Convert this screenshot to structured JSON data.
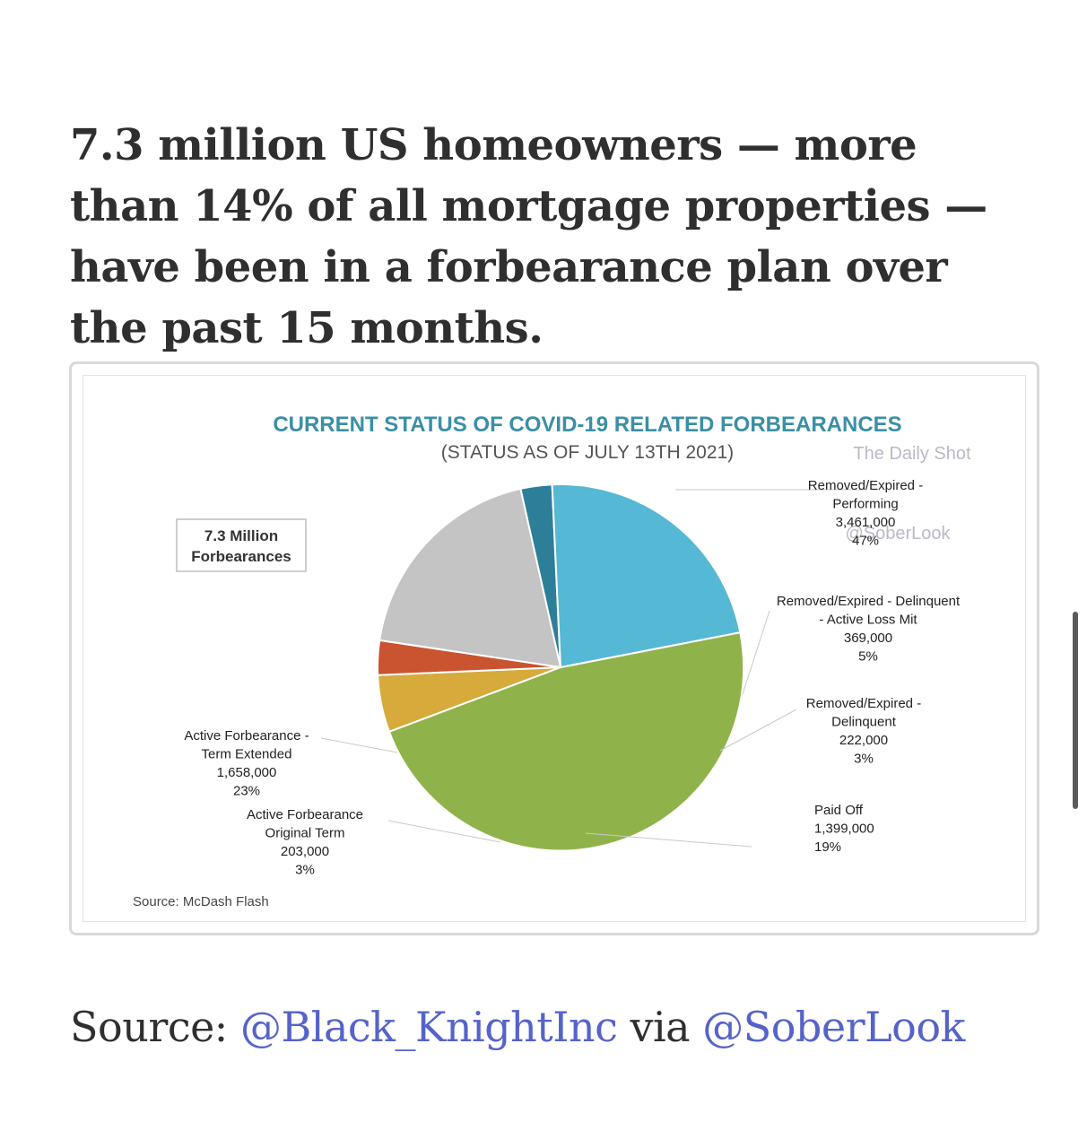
{
  "headline": "7.3 million US homeowners — more than 14% of all mortgage properties — have been in a forbearance plan over the past 15 months.",
  "source_line": {
    "prefix": "Source: ",
    "link1": "@Black_KnightInc",
    "middle": " via ",
    "link2": "@SoberLook",
    "link_color": "#5563c9"
  },
  "chart_data": {
    "type": "pie",
    "title": "CURRENT STATUS OF COVID-19 RELATED FORBEARANCES",
    "subtitle": "(STATUS AS OF JULY 13TH 2021)",
    "watermarks": [
      "The Daily Shot",
      "@SoberLook"
    ],
    "callout_box": [
      "7.3 Million",
      "Forbearances"
    ],
    "source_note": "Source: McDash Flash",
    "slices": [
      {
        "label_lines": [
          "Removed/Expired -",
          "Performing"
        ],
        "count": "3,461,000",
        "percent_label": "47%",
        "value": 3461000,
        "color": "#8fb34a"
      },
      {
        "label_lines": [
          "Removed/Expired - Delinquent",
          "- Active Loss Mit"
        ],
        "count": "369,000",
        "percent_label": "5%",
        "value": 369000,
        "color": "#d6ab3b"
      },
      {
        "label_lines": [
          "Removed/Expired -",
          "Delinquent"
        ],
        "count": "222,000",
        "percent_label": "3%",
        "value": 222000,
        "color": "#c9542f"
      },
      {
        "label_lines": [
          "Paid Off"
        ],
        "count": "1,399,000",
        "percent_label": "19%",
        "value": 1399000,
        "color": "#c4c4c4"
      },
      {
        "label_lines": [
          "Active Forbearance",
          "Original Term"
        ],
        "count": "203,000",
        "percent_label": "3%",
        "value": 203000,
        "color": "#2d7f99"
      },
      {
        "label_lines": [
          "Active Forbearance -",
          "Term Extended"
        ],
        "count": "1,658,000",
        "percent_label": "23%",
        "value": 1658000,
        "color": "#55b8d4"
      }
    ]
  }
}
